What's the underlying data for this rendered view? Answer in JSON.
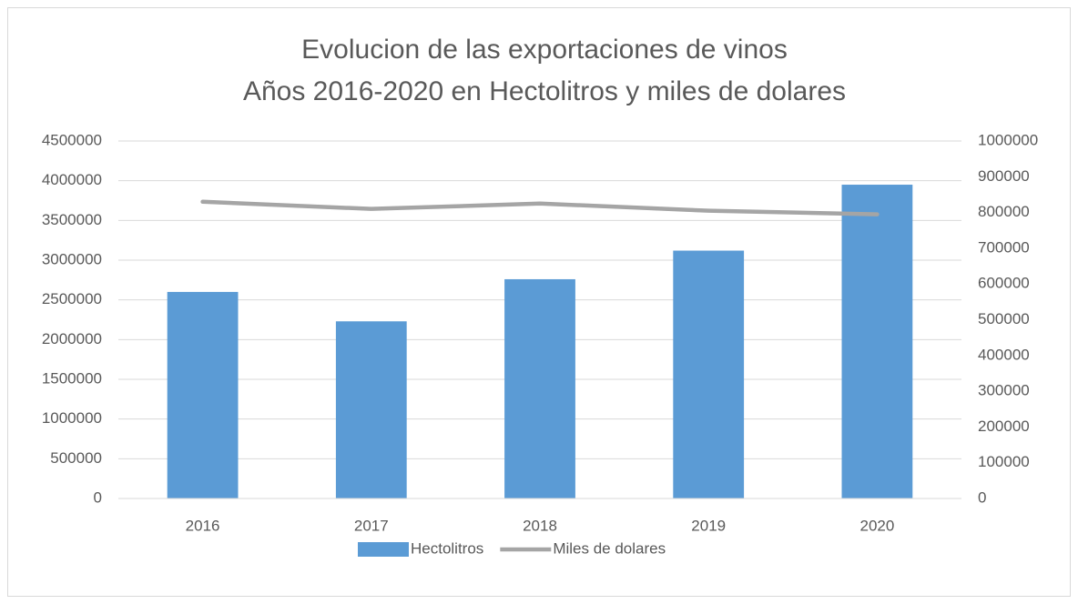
{
  "chart_data": {
    "type": "bar",
    "title": "Evolucion de las exportaciones de vinos",
    "subtitle": "Años 2016-2020 en Hectolitros y miles de dolares",
    "categories": [
      "2016",
      "2017",
      "2018",
      "2019",
      "2020"
    ],
    "series": [
      {
        "name": "Hectolitros",
        "type": "bar",
        "color": "#5b9bd5",
        "values": [
          2600000,
          2230000,
          2760000,
          3120000,
          3950000
        ]
      },
      {
        "name": "Miles de dolares",
        "type": "line",
        "axis": "y2",
        "color": "#a5a5a5",
        "values": [
          830000,
          810000,
          825000,
          805000,
          795000
        ]
      }
    ],
    "ylim": [
      0,
      4500000
    ],
    "yticks": [
      0,
      500000,
      1000000,
      1500000,
      2000000,
      2500000,
      3000000,
      3500000,
      4000000,
      4500000
    ],
    "y2lim": [
      0,
      1000000
    ],
    "y2ticks": [
      0,
      100000,
      200000,
      300000,
      400000,
      500000,
      600000,
      700000,
      800000,
      900000,
      1000000
    ],
    "grid": true,
    "legend": "bottom"
  }
}
